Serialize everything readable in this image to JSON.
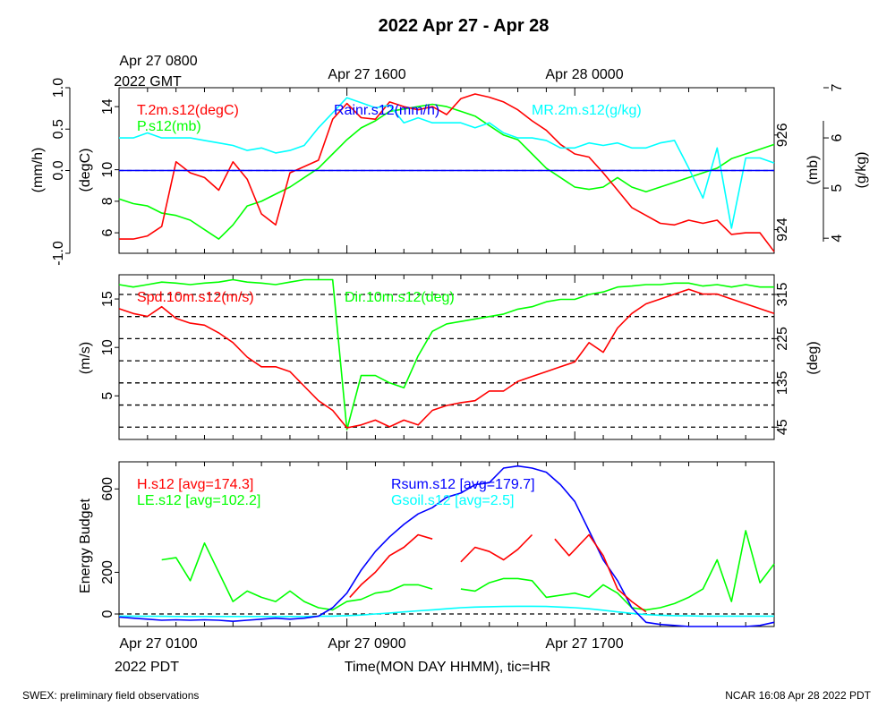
{
  "title": "2022 Apr 27 - Apr 28",
  "footer_left": "SWEX: preliminary field observations",
  "footer_right": "NCAR 16:08 Apr 28 2022 PDT",
  "top_time_labels": [
    "Apr 27 0800",
    "Apr 27 1600",
    "Apr 28 0000"
  ],
  "top_time_label_extra": "2022 GMT",
  "bottom_time_labels": [
    "Apr 27 0100",
    "Apr 27 0900",
    "Apr 27 1700"
  ],
  "bottom_time_label_extra": "2022 PDT",
  "xlabel": "Time(MON DAY HHMM), tic=HR",
  "chart_data": [
    {
      "type": "line",
      "panel": "meteorology",
      "x_unit": "hours since Apr 27 0000 PDT",
      "xlim": [
        1,
        24
      ],
      "x": [
        1,
        1.5,
        2,
        2.5,
        3,
        3.5,
        4,
        4.5,
        5,
        5.5,
        6,
        6.5,
        7,
        7.5,
        8,
        8.5,
        9,
        9.5,
        10,
        10.5,
        11,
        11.5,
        12,
        12.5,
        13,
        13.5,
        14,
        14.5,
        15,
        15.5,
        16,
        16.5,
        17,
        17.5,
        18,
        18.5,
        19,
        19.5,
        20,
        20.5,
        21,
        21.5,
        22,
        22.5,
        23,
        23.5,
        24
      ],
      "axes": {
        "rain": {
          "label": "(mm/h)",
          "ticks": [
            -1.0,
            0.0,
            0.5,
            1.0
          ],
          "tick_labels": [
            "-1.0",
            "0.0",
            "0.5",
            "1.0"
          ],
          "ylim": [
            -1.0,
            1.0
          ]
        },
        "temperature": {
          "label": "(degC)",
          "ticks": [
            6,
            8,
            10,
            14
          ],
          "tick_labels": [
            "6",
            "8",
            "10",
            "14"
          ],
          "ylim": [
            4.7,
            15.2
          ]
        },
        "pressure": {
          "label": "(mb)",
          "ticks": [
            924,
            926
          ],
          "tick_labels": [
            "924",
            "926"
          ],
          "ylim": [
            923.5,
            927.0
          ]
        },
        "mixing_ratio": {
          "label": "(g/kg)",
          "ticks": [
            4,
            5,
            6,
            7
          ],
          "tick_labels": [
            "4",
            "5",
            "6",
            "7"
          ],
          "ylim": [
            3.7,
            7.0
          ]
        }
      },
      "series": [
        {
          "name": "T.2m.s12(degC)",
          "color": "#ff0000",
          "axis": "temperature",
          "values": [
            5.6,
            5.6,
            5.8,
            6.4,
            10.5,
            9.8,
            9.5,
            8.7,
            10.5,
            9.4,
            7.2,
            6.5,
            9.8,
            10.2,
            10.6,
            13.2,
            14.2,
            13.3,
            13.2,
            14.3,
            14.0,
            13.8,
            14.0,
            13.5,
            14.5,
            14.8,
            14.6,
            14.3,
            13.8,
            13.1,
            12.5,
            11.6,
            11.0,
            10.8,
            9.8,
            8.7,
            7.6,
            7.1,
            6.6,
            6.5,
            6.8,
            6.6,
            6.8,
            5.9,
            6.0,
            6.0,
            4.8
          ]
        },
        {
          "name": "P.s12(mb)",
          "color": "#00ff00",
          "axis": "pressure",
          "values": [
            924.65,
            924.55,
            924.5,
            924.35,
            924.3,
            924.2,
            924.0,
            923.8,
            924.1,
            924.5,
            924.6,
            924.75,
            924.9,
            925.1,
            925.3,
            925.6,
            925.9,
            926.15,
            926.3,
            926.5,
            926.55,
            926.6,
            926.65,
            926.6,
            926.5,
            926.4,
            926.2,
            926.0,
            925.9,
            925.6,
            925.3,
            925.1,
            924.9,
            924.85,
            924.9,
            925.1,
            924.9,
            924.8,
            924.9,
            925.0,
            925.1,
            925.2,
            925.3,
            925.5,
            925.6,
            925.7,
            925.8
          ]
        },
        {
          "name": "Rainr.s12(mm/h)",
          "color": "#0000ff",
          "axis": "rain",
          "values": [
            0,
            0,
            0,
            0,
            0,
            0,
            0,
            0,
            0,
            0,
            0,
            0,
            0,
            0,
            0,
            0,
            0,
            0,
            0,
            0,
            0,
            0,
            0,
            0,
            0,
            0,
            0,
            0,
            0,
            0,
            0,
            0,
            0,
            0,
            0,
            0,
            0,
            0,
            0,
            0,
            0,
            0,
            0,
            0,
            0,
            0,
            0
          ]
        },
        {
          "name": "MR.2m.s12(g/kg)",
          "color": "#00ffff",
          "axis": "mixing_ratio",
          "values": [
            6.0,
            6.0,
            6.1,
            6.0,
            6.0,
            6.0,
            5.95,
            5.9,
            5.85,
            5.75,
            5.8,
            5.7,
            5.75,
            5.85,
            6.2,
            6.5,
            6.8,
            6.7,
            6.6,
            6.65,
            6.3,
            6.4,
            6.3,
            6.3,
            6.3,
            6.2,
            6.3,
            6.1,
            6.0,
            6.0,
            5.95,
            5.8,
            5.8,
            5.9,
            5.85,
            5.9,
            5.8,
            5.8,
            5.9,
            5.95,
            5.4,
            4.8,
            5.8,
            4.2,
            5.6,
            5.6,
            5.5
          ]
        }
      ]
    },
    {
      "type": "line",
      "panel": "wind",
      "x_unit": "hours since Apr 27 0000 PDT",
      "xlim": [
        1,
        24
      ],
      "x": [
        1,
        1.5,
        2,
        2.5,
        3,
        3.5,
        4,
        4.5,
        5,
        5.5,
        6,
        6.5,
        7,
        7.5,
        8,
        8.5,
        9,
        9.5,
        10,
        10.5,
        11,
        11.5,
        12,
        12.5,
        13,
        13.5,
        14,
        14.5,
        15,
        15.5,
        16,
        16.5,
        17,
        17.5,
        18,
        18.5,
        19,
        19.5,
        20,
        20.5,
        21,
        21.5,
        22,
        22.5,
        23,
        23.5,
        24
      ],
      "axes": {
        "speed": {
          "label": "(m/s)",
          "ticks": [
            5,
            10,
            15
          ],
          "tick_labels": [
            "5",
            "10",
            "15"
          ],
          "ylim": [
            0.5,
            17.5
          ]
        },
        "direction": {
          "label": "(deg)",
          "ticks": [
            45,
            135,
            225,
            315
          ],
          "tick_labels": [
            "45",
            "135",
            "225",
            "315"
          ],
          "ylim": [
            20,
            355
          ]
        }
      },
      "reference_lines_deg": [
        45,
        90,
        135,
        180,
        225,
        270,
        315
      ],
      "series": [
        {
          "name": "Spd.10m.s12(m/s)",
          "color": "#ff0000",
          "axis": "speed",
          "values": [
            14.0,
            13.5,
            13.2,
            14.2,
            13.0,
            12.5,
            12.3,
            11.5,
            10.5,
            9.0,
            8.0,
            8.0,
            7.5,
            6.0,
            4.5,
            3.5,
            1.7,
            2.0,
            2.5,
            1.8,
            2.5,
            2.0,
            3.5,
            4.0,
            4.3,
            4.5,
            5.5,
            5.5,
            6.5,
            7.0,
            7.5,
            8.0,
            8.5,
            10.5,
            9.5,
            12.0,
            13.5,
            14.5,
            15.0,
            15.5,
            16.0,
            15.5,
            15.5,
            15.0,
            14.5,
            14.0,
            13.5
          ]
        },
        {
          "name": "Dir.10m.s12(deg)",
          "color": "#00ff00",
          "axis": "direction",
          "values": [
            335,
            330,
            335,
            340,
            338,
            335,
            338,
            340,
            345,
            340,
            338,
            335,
            340,
            345,
            345,
            345,
            40,
            150,
            150,
            135,
            125,
            190,
            240,
            255,
            260,
            265,
            270,
            275,
            285,
            290,
            300,
            305,
            305,
            315,
            320,
            330,
            332,
            335,
            335,
            338,
            338,
            332,
            335,
            330,
            335,
            330,
            330
          ]
        }
      ]
    },
    {
      "type": "line",
      "panel": "energy_budget",
      "x_unit": "hours since Apr 27 0000 PDT",
      "xlim": [
        1,
        24
      ],
      "ylabel": "Energy Budget",
      "yticks": [
        0,
        200,
        600
      ],
      "ytick_labels": [
        "0",
        "200",
        "600"
      ],
      "ylim": [
        -60,
        730
      ],
      "series": [
        {
          "name": "H.s12",
          "legend": "H.s12 [avg=174.3]",
          "color": "#ff0000",
          "x": [
            9.1,
            9.5,
            10,
            10.5,
            11,
            11.5,
            12,
            null,
            13,
            13.5,
            14,
            14.5,
            15,
            15.5,
            null,
            16.3,
            16.8,
            17.5,
            18,
            18.5,
            19,
            19.5
          ],
          "values": [
            80,
            140,
            200,
            280,
            320,
            380,
            360,
            null,
            250,
            320,
            300,
            260,
            310,
            380,
            null,
            360,
            280,
            380,
            280,
            120,
            60,
            10
          ]
        },
        {
          "name": "LE.s12",
          "legend": "LE.s12 [avg=102.2]",
          "color": "#00ff00",
          "x": [
            2.5,
            3,
            3.5,
            4,
            4.5,
            5,
            5.5,
            6,
            6.5,
            7,
            7.5,
            8,
            8.5,
            9,
            9.5,
            10,
            10.5,
            11,
            11.5,
            12,
            null,
            13,
            13.5,
            14,
            14.5,
            15,
            15.5,
            16,
            16.5,
            17,
            17.5,
            18,
            18.5,
            19,
            19.5,
            20,
            20.5,
            21,
            21.5,
            22,
            22.5,
            23,
            23.5,
            24
          ],
          "values": [
            260,
            270,
            160,
            340,
            200,
            60,
            110,
            80,
            60,
            110,
            60,
            30,
            20,
            60,
            70,
            100,
            110,
            140,
            140,
            120,
            null,
            120,
            110,
            150,
            170,
            170,
            160,
            80,
            90,
            100,
            80,
            140,
            100,
            30,
            20,
            30,
            50,
            80,
            120,
            260,
            60,
            400,
            150,
            240
          ]
        },
        {
          "name": "Rsum.s12",
          "legend": "Rsum.s12 [avg=179.7]",
          "color": "#0000ff",
          "x": [
            1,
            1.5,
            2,
            2.5,
            3,
            3.5,
            4,
            4.5,
            5,
            5.5,
            6,
            6.5,
            7,
            7.5,
            8,
            8.5,
            9,
            9.5,
            10,
            10.5,
            11,
            11.5,
            12,
            12.5,
            13,
            13.5,
            14,
            14.5,
            15,
            15.5,
            16,
            16.5,
            17,
            17.5,
            18,
            18.5,
            19,
            19.5,
            20,
            20.5,
            21,
            21.5,
            22,
            22.5,
            23,
            23.5,
            24
          ],
          "values": [
            -15,
            -20,
            -25,
            -30,
            -28,
            -30,
            -28,
            -30,
            -35,
            -30,
            -25,
            -20,
            -25,
            -20,
            -10,
            30,
            100,
            210,
            300,
            370,
            430,
            480,
            510,
            560,
            580,
            620,
            630,
            700,
            710,
            700,
            680,
            620,
            540,
            400,
            260,
            160,
            30,
            -40,
            -50,
            -55,
            -60,
            -60,
            -60,
            -60,
            -60,
            -55,
            -40
          ]
        },
        {
          "name": "Gsoil.s12",
          "legend": "Gsoil.s12 [avg=2.5]",
          "color": "#00ffff",
          "x": [
            1,
            1.5,
            2,
            2.5,
            3,
            3.5,
            4,
            4.5,
            5,
            5.5,
            6,
            6.5,
            7,
            7.5,
            8,
            8.5,
            9,
            9.5,
            10,
            10.5,
            11,
            11.5,
            12,
            12.5,
            13,
            13.5,
            14,
            14.5,
            15,
            15.5,
            16,
            16.5,
            17,
            17.5,
            18,
            18.5,
            19,
            19.5,
            20,
            20.5,
            21,
            21.5,
            22,
            22.5,
            23,
            23.5,
            24
          ],
          "values": [
            -10,
            -10,
            -11,
            -11,
            -12,
            -12,
            -12,
            -12,
            -12,
            -12,
            -12,
            -12,
            -12,
            -12,
            -11,
            -10,
            -8,
            -5,
            0,
            5,
            10,
            15,
            20,
            25,
            30,
            33,
            35,
            36,
            37,
            37,
            36,
            33,
            30,
            25,
            18,
            10,
            3,
            -3,
            -6,
            -8,
            -9,
            -10,
            -10,
            -10,
            -10,
            -10,
            -10
          ]
        }
      ]
    }
  ]
}
